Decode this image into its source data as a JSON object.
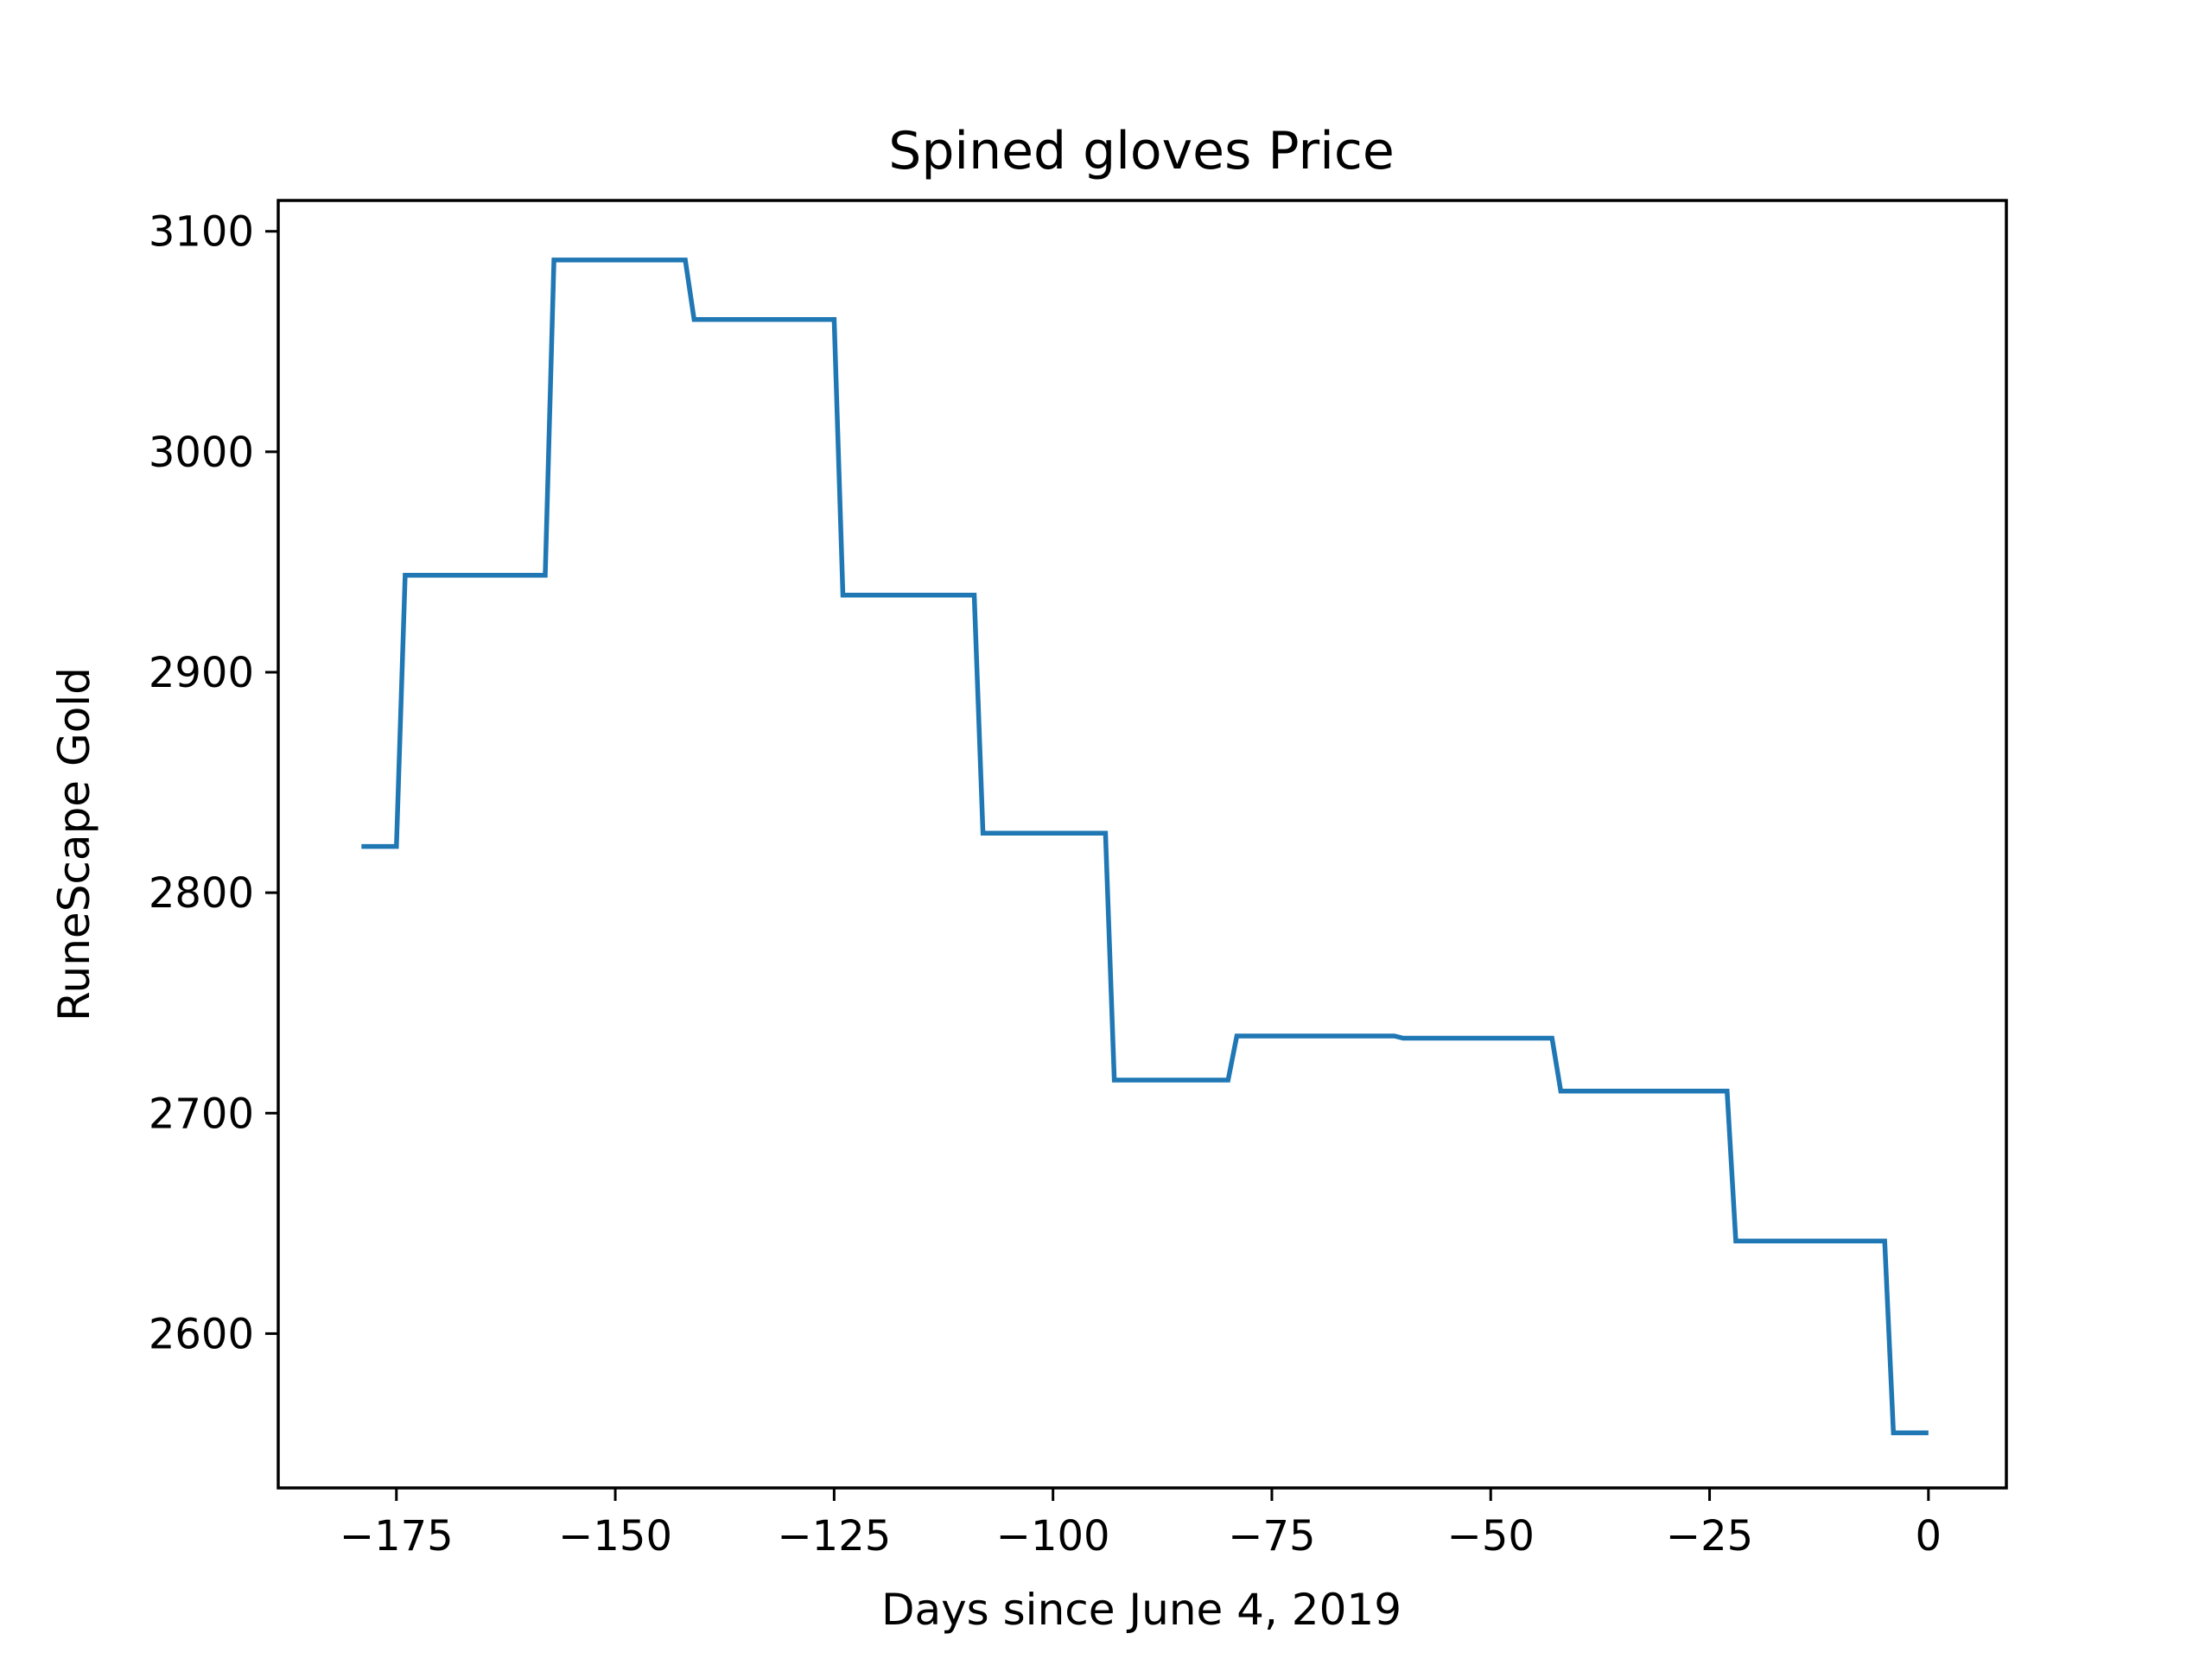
{
  "chart_data": {
    "type": "line",
    "title": "Spined gloves Price",
    "xlabel": "Days since June 4, 2019",
    "ylabel": "RuneScape Gold",
    "xlim": [
      -188.5,
      8.9
    ],
    "ylim": [
      2530,
      3114
    ],
    "xticks": [
      -175,
      -150,
      -125,
      -100,
      -75,
      -50,
      -25,
      0
    ],
    "xtick_labels": [
      "−175",
      "−150",
      "−125",
      "−100",
      "−75",
      "−50",
      "−25",
      "0"
    ],
    "yticks": [
      2600,
      2700,
      2800,
      2900,
      3000,
      3100
    ],
    "ytick_labels": [
      "2600",
      "2700",
      "2800",
      "2900",
      "3000",
      "3100"
    ],
    "grid": false,
    "color": "#1f77b4",
    "series": [
      {
        "x": [
          -179,
          -175,
          -174,
          -158,
          -157,
          -142,
          -141,
          -125,
          -124,
          -109,
          -108,
          -94,
          -93,
          -80,
          -79,
          -61,
          -60,
          -43,
          -42,
          -23,
          -22,
          -5,
          -4,
          0
        ],
        "y": [
          2821,
          2821,
          2944,
          2944,
          3087,
          3087,
          3060,
          3060,
          2935,
          2935,
          2827,
          2827,
          2715,
          2715,
          2735,
          2735,
          2734,
          2734,
          2710,
          2710,
          2642,
          2642,
          2555,
          2555
        ]
      }
    ]
  }
}
